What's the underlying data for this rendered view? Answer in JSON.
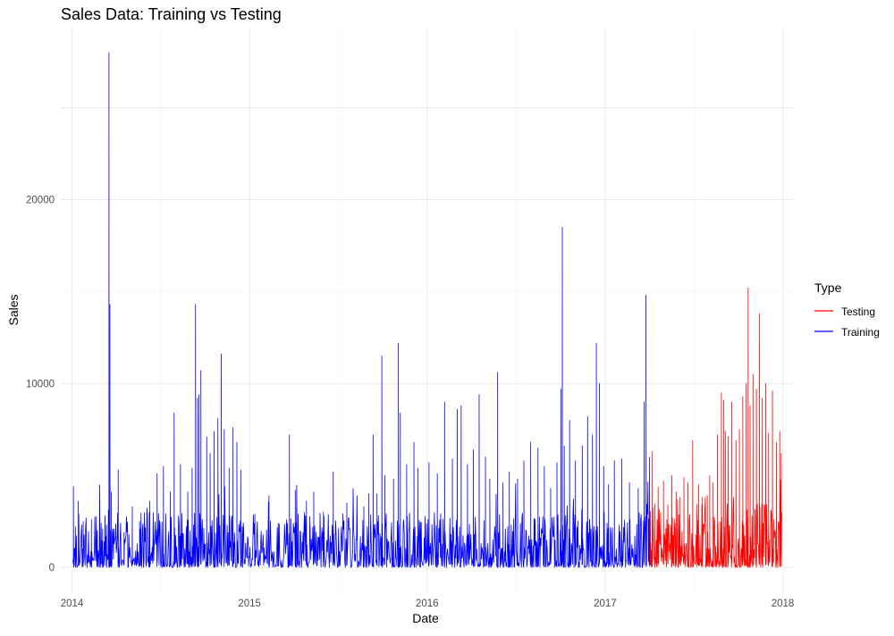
{
  "chart_data": {
    "type": "line",
    "title": "Sales Data: Training vs Testing",
    "xlabel": "Date",
    "ylabel": "Sales",
    "x_ticks": [
      "2014",
      "2015",
      "2016",
      "2017",
      "2018"
    ],
    "y_ticks": [
      "0",
      "10000",
      "20000"
    ],
    "xlim": [
      "2013-12-09",
      "2018-01-24"
    ],
    "ylim": [
      -1400,
      29400
    ],
    "grid": true,
    "legend": {
      "title": "Type",
      "position": "right"
    },
    "series": [
      {
        "name": "Testing",
        "color": "#ff0000",
        "x_range": [
          "2017-04-04",
          "2017-12-30"
        ],
        "points": [
          [
            "2017-04-04",
            1200
          ],
          [
            "2017-04-08",
            6300
          ],
          [
            "2017-04-13",
            2200
          ],
          [
            "2017-04-20",
            3900
          ],
          [
            "2017-05-01",
            4700
          ],
          [
            "2017-05-10",
            3400
          ],
          [
            "2017-05-18",
            5000
          ],
          [
            "2017-05-27",
            4100
          ],
          [
            "2017-06-04",
            3800
          ],
          [
            "2017-06-12",
            4900
          ],
          [
            "2017-06-20",
            4600
          ],
          [
            "2017-06-30",
            6900
          ],
          [
            "2017-07-12",
            4500
          ],
          [
            "2017-07-20",
            3800
          ],
          [
            "2017-07-30",
            3900
          ],
          [
            "2017-08-04",
            5000
          ],
          [
            "2017-08-11",
            4600
          ],
          [
            "2017-08-20",
            7200
          ],
          [
            "2017-08-28",
            9500
          ],
          [
            "2017-09-02",
            9100
          ],
          [
            "2017-09-05",
            7400
          ],
          [
            "2017-09-11",
            7100
          ],
          [
            "2017-09-18",
            9000
          ],
          [
            "2017-09-27",
            6900
          ],
          [
            "2017-10-04",
            7500
          ],
          [
            "2017-10-11",
            9300
          ],
          [
            "2017-10-18",
            10000
          ],
          [
            "2017-10-22",
            15200
          ],
          [
            "2017-10-26",
            8800
          ],
          [
            "2017-11-01",
            10500
          ],
          [
            "2017-11-08",
            9700
          ],
          [
            "2017-11-14",
            13800
          ],
          [
            "2017-11-20",
            9200
          ],
          [
            "2017-11-27",
            10000
          ],
          [
            "2017-12-03",
            7300
          ],
          [
            "2017-12-11",
            9600
          ],
          [
            "2017-12-19",
            6800
          ],
          [
            "2017-12-26",
            7400
          ],
          [
            "2017-12-29",
            6200
          ]
        ],
        "baseline": [
          0,
          3500
        ]
      },
      {
        "name": "Training",
        "color": "#0000ff",
        "x_range": [
          "2014-01-03",
          "2017-04-04"
        ],
        "points": [
          [
            "2014-01-04",
            4400
          ],
          [
            "2014-01-08",
            2200
          ],
          [
            "2014-01-14",
            3600
          ],
          [
            "2014-01-24",
            2500
          ],
          [
            "2014-02-10",
            1100
          ],
          [
            "2014-02-22",
            2000
          ],
          [
            "2014-03-05",
            2100
          ],
          [
            "2014-03-13",
            2300
          ],
          [
            "2014-03-18",
            28000
          ],
          [
            "2014-03-20",
            14300
          ],
          [
            "2014-03-23",
            4100
          ],
          [
            "2014-04-06",
            5300
          ],
          [
            "2014-04-18",
            1900
          ],
          [
            "2014-05-05",
            2100
          ],
          [
            "2014-05-20",
            2500
          ],
          [
            "2014-06-10",
            3600
          ],
          [
            "2014-06-25",
            5100
          ],
          [
            "2014-07-08",
            5500
          ],
          [
            "2014-07-22",
            4100
          ],
          [
            "2014-07-30",
            8400
          ],
          [
            "2014-08-12",
            5600
          ],
          [
            "2014-08-27",
            4100
          ],
          [
            "2014-09-05",
            5400
          ],
          [
            "2014-09-12",
            14300
          ],
          [
            "2014-09-16",
            9200
          ],
          [
            "2014-09-19",
            9400
          ],
          [
            "2014-09-23",
            10700
          ],
          [
            "2014-10-05",
            7100
          ],
          [
            "2014-10-12",
            6200
          ],
          [
            "2014-10-20",
            7400
          ],
          [
            "2014-10-28",
            8100
          ],
          [
            "2014-11-04",
            11600
          ],
          [
            "2014-11-10",
            7500
          ],
          [
            "2014-11-20",
            5400
          ],
          [
            "2014-11-28",
            7600
          ],
          [
            "2014-12-06",
            6800
          ],
          [
            "2014-12-14",
            5300
          ],
          [
            "2015-01-12",
            2900
          ],
          [
            "2015-02-10",
            3900
          ],
          [
            "2015-03-01",
            2400
          ],
          [
            "2015-03-24",
            7200
          ],
          [
            "2015-04-05",
            4200
          ],
          [
            "2015-04-28",
            3600
          ],
          [
            "2015-05-13",
            4100
          ],
          [
            "2015-06-02",
            3000
          ],
          [
            "2015-06-22",
            5200
          ],
          [
            "2015-07-20",
            3500
          ],
          [
            "2015-08-24",
            3300
          ],
          [
            "2015-09-03",
            4000
          ],
          [
            "2015-09-12",
            7200
          ],
          [
            "2015-09-20",
            4000
          ],
          [
            "2015-09-30",
            11500
          ],
          [
            "2015-10-06",
            5000
          ],
          [
            "2015-10-24",
            4800
          ],
          [
            "2015-11-03",
            12200
          ],
          [
            "2015-11-07",
            8400
          ],
          [
            "2015-11-20",
            5600
          ],
          [
            "2015-12-05",
            6800
          ],
          [
            "2015-12-13",
            5400
          ],
          [
            "2016-01-05",
            5700
          ],
          [
            "2016-01-22",
            5100
          ],
          [
            "2016-02-06",
            9000
          ],
          [
            "2016-02-22",
            5900
          ],
          [
            "2016-03-03",
            8600
          ],
          [
            "2016-03-11",
            8800
          ],
          [
            "2016-03-24",
            5600
          ],
          [
            "2016-04-05",
            6400
          ],
          [
            "2016-04-17",
            9400
          ],
          [
            "2016-04-30",
            6000
          ],
          [
            "2016-05-09",
            4800
          ],
          [
            "2016-05-25",
            10600
          ],
          [
            "2016-06-05",
            4600
          ],
          [
            "2016-06-18",
            5200
          ],
          [
            "2016-07-05",
            4800
          ],
          [
            "2016-07-18",
            5800
          ],
          [
            "2016-08-01",
            6800
          ],
          [
            "2016-08-16",
            6500
          ],
          [
            "2016-08-29",
            5500
          ],
          [
            "2016-09-11",
            4300
          ],
          [
            "2016-09-24",
            5700
          ],
          [
            "2016-10-02",
            9700
          ],
          [
            "2016-10-05",
            18500
          ],
          [
            "2016-10-09",
            6600
          ],
          [
            "2016-10-20",
            8000
          ],
          [
            "2016-11-01",
            5800
          ],
          [
            "2016-11-15",
            6600
          ],
          [
            "2016-11-26",
            8200
          ],
          [
            "2016-12-06",
            7200
          ],
          [
            "2016-12-14",
            12200
          ],
          [
            "2016-12-20",
            10000
          ],
          [
            "2016-12-29",
            5500
          ],
          [
            "2017-01-08",
            4500
          ],
          [
            "2017-01-20",
            5800
          ],
          [
            "2017-02-04",
            5900
          ],
          [
            "2017-02-20",
            4600
          ],
          [
            "2017-03-10",
            4300
          ],
          [
            "2017-03-22",
            9000
          ],
          [
            "2017-03-26",
            14800
          ],
          [
            "2017-04-02",
            6000
          ]
        ],
        "baseline": [
          0,
          3000
        ]
      }
    ]
  }
}
